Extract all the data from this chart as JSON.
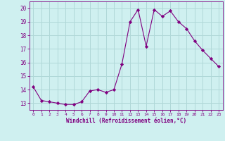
{
  "x": [
    0,
    1,
    2,
    3,
    4,
    5,
    6,
    7,
    8,
    9,
    10,
    11,
    12,
    13,
    14,
    15,
    16,
    17,
    18,
    19,
    20,
    21,
    22,
    23
  ],
  "y": [
    14.2,
    13.2,
    13.1,
    13.0,
    12.9,
    12.9,
    13.1,
    13.9,
    14.0,
    13.8,
    14.0,
    15.9,
    19.0,
    19.9,
    17.2,
    19.9,
    19.4,
    19.8,
    19.0,
    18.5,
    17.6,
    16.9,
    16.3,
    15.7
  ],
  "line_color": "#800080",
  "marker": "D",
  "marker_size": 2.2,
  "bg_color": "#cff0f0",
  "grid_color": "#b0d8d8",
  "xlabel": "Windchill (Refroidissement éolien,°C)",
  "xlabel_color": "#800080",
  "tick_color": "#800080",
  "ylim": [
    12.5,
    20.5
  ],
  "xlim": [
    -0.5,
    23.5
  ],
  "yticks": [
    13,
    14,
    15,
    16,
    17,
    18,
    19,
    20
  ],
  "xticks": [
    0,
    1,
    2,
    3,
    4,
    5,
    6,
    7,
    8,
    9,
    10,
    11,
    12,
    13,
    14,
    15,
    16,
    17,
    18,
    19,
    20,
    21,
    22,
    23
  ]
}
